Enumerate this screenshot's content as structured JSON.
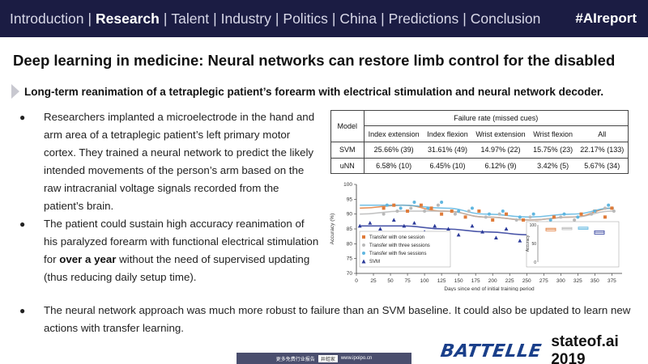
{
  "nav": {
    "items": [
      "Introduction",
      "Research",
      "Talent",
      "Industry",
      "Politics",
      "China",
      "Predictions",
      "Conclusion"
    ],
    "active_index": 1,
    "hashtag": "#AIreport"
  },
  "slide": {
    "title": "Deep learning in medicine: Neural networks can restore limb control for the disabled",
    "subtitle": "Long-term reanimation of a tetraplegic patient’s forearm with electrical stimulation and neural network decoder.",
    "bullet1": "Researchers implanted a microelectrode in the hand and arm area of a tetraplegic patient’s left primary motor cortex. They trained a neural network to predict the likely intended movements of the person’s arm based on the raw intracranial voltage signals recorded from the patient’s brain.",
    "bullet2_pre": "The patient could sustain high accuracy reanimation of his paralyzed forearm with functional electrical stimulation for ",
    "bullet2_bold": "over a year",
    "bullet2_post": " without the need of supervised updating (thus reducing daily setup time).",
    "bullet3": "The neural network approach was much more robust to failure than an SVM baseline. It could also be updated to learn new actions with transfer learning."
  },
  "table": {
    "model_header": "Model",
    "group_header": "Failure rate (missed cues)",
    "columns": [
      "Index extension",
      "Index flexion",
      "Wrist extension",
      "Wrist flexion",
      "All"
    ],
    "rows": [
      {
        "model": "SVM",
        "values": [
          "25.66% (39)",
          "31.61% (49)",
          "14.97% (22)",
          "15.75% (23)",
          "22.17% (133)"
        ]
      },
      {
        "model": "uNN",
        "values": [
          "6.58% (10)",
          "6.45% (10)",
          "6.12% (9)",
          "3.42% (5)",
          "5.67% (34)"
        ]
      }
    ]
  },
  "chart_data": {
    "type": "scatter",
    "xlabel": "Days since end of initial training period",
    "ylabel": "Accuracy (%)",
    "xlim": [
      0,
      390
    ],
    "ylim": [
      70,
      100
    ],
    "xticks": [
      0,
      25,
      50,
      75,
      100,
      125,
      150,
      175,
      200,
      225,
      250,
      275,
      300,
      325,
      350,
      375
    ],
    "yticks": [
      70,
      75,
      80,
      85,
      90,
      95,
      100
    ],
    "series": [
      {
        "name": "Transfer with one session",
        "color": "#e07b39",
        "marker": "square",
        "x": [
          40,
          55,
          75,
          95,
          110,
          125,
          140,
          160,
          180,
          200,
          220,
          245,
          265,
          290,
          310,
          330,
          350,
          365,
          375
        ],
        "y": [
          92,
          93,
          91,
          93,
          92,
          90,
          91,
          89,
          91,
          88,
          90,
          88,
          87,
          89,
          86,
          90,
          91,
          89,
          92
        ]
      },
      {
        "name": "Transfer with three sessions",
        "color": "#b9b9b9",
        "marker": "circle",
        "x": [
          40,
          60,
          80,
          100,
          120,
          145,
          165,
          190,
          210,
          235,
          255,
          280,
          300,
          320,
          345,
          365,
          378
        ],
        "y": [
          90,
          91,
          92,
          91,
          93,
          90,
          91,
          89,
          90,
          88,
          89,
          87,
          89,
          88,
          90,
          92,
          91
        ]
      },
      {
        "name": "Transfer with five sessions",
        "color": "#5fb6e0",
        "marker": "circle",
        "x": [
          45,
          65,
          85,
          105,
          125,
          150,
          170,
          195,
          215,
          240,
          260,
          285,
          305,
          325,
          350,
          370
        ],
        "y": [
          93,
          92,
          94,
          92,
          94,
          91,
          92,
          90,
          91,
          89,
          90,
          88,
          90,
          89,
          91,
          93
        ]
      },
      {
        "name": "SVM",
        "color": "#2b3a9a",
        "marker": "triangle",
        "x": [
          5,
          20,
          35,
          55,
          70,
          85,
          100,
          115,
          135,
          150,
          170,
          185,
          205,
          220,
          240,
          255,
          270,
          285,
          300,
          320,
          340,
          355,
          370,
          380
        ],
        "y": [
          86,
          87,
          85,
          88,
          86,
          87,
          84,
          86,
          85,
          83,
          86,
          84,
          82,
          85,
          81,
          84,
          80,
          83,
          82,
          84,
          85,
          83,
          86,
          84
        ]
      }
    ],
    "fit_lines": [
      {
        "color": "#e07b39",
        "y": [
          92,
          93,
          91,
          89,
          88,
          89,
          92
        ]
      },
      {
        "color": "#b9b9b9",
        "y": [
          90,
          91,
          91,
          89,
          88,
          89,
          91
        ]
      },
      {
        "color": "#5fb6e0",
        "y": [
          93,
          93,
          92,
          90,
          89,
          90,
          92
        ]
      },
      {
        "color": "#2b3a9a",
        "y": [
          86,
          86,
          85,
          84,
          83,
          84,
          85
        ]
      }
    ],
    "inset": {
      "ylabel": "Accuracy",
      "yticks": [
        0,
        50,
        100
      ],
      "boxes": [
        {
          "color": "#e07b39",
          "median": 88,
          "q1": 84,
          "q3": 91
        },
        {
          "color": "#b9b9b9",
          "median": 90,
          "q1": 87,
          "q3": 93
        },
        {
          "color": "#5fb6e0",
          "median": 91,
          "q1": 88,
          "q3": 94
        },
        {
          "color": "#2b3a9a",
          "median": 80,
          "q1": 75,
          "q3": 84
        }
      ]
    },
    "legend_position": "bottom-left"
  },
  "brand": {
    "logo": "BATTELLE",
    "site": "stateof.ai 2019"
  },
  "footer": {
    "left": "更多免费行业报告",
    "mid": "井蛙家",
    "right": "www.ipoipo.cn"
  }
}
